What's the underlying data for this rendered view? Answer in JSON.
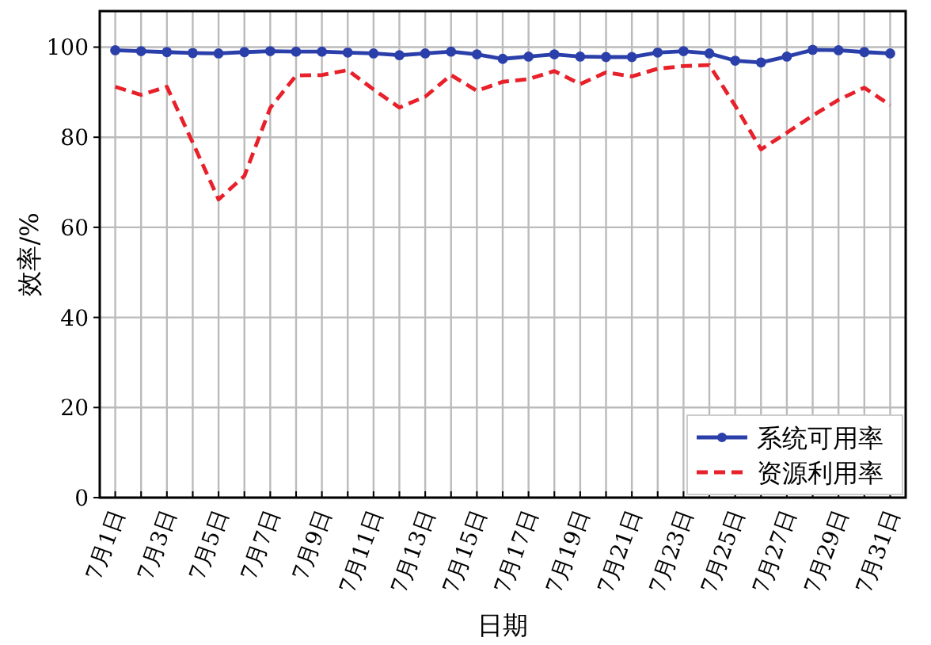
{
  "chart_data": {
    "type": "line",
    "xlabel": "日期",
    "ylabel": "效率/%",
    "categories": [
      "7月1日",
      null,
      "7月3日",
      null,
      "7月5日",
      null,
      "7月7日",
      null,
      "7月9日",
      null,
      "7月11日",
      null,
      "7月13日",
      null,
      "7月15日",
      null,
      "7月17日",
      null,
      "7月19日",
      null,
      "7月21日",
      null,
      "7月23日",
      null,
      "7月25日",
      null,
      "7月27日",
      null,
      "7月29日",
      null,
      "7月31日"
    ],
    "series": [
      {
        "name": "系统可用率",
        "color": "#2b3faa",
        "marker": "circle",
        "line_style": "solid",
        "values": [
          99.3,
          99.1,
          98.9,
          98.7,
          98.6,
          98.9,
          99.1,
          99.0,
          99.0,
          98.8,
          98.6,
          98.2,
          98.6,
          99.0,
          98.4,
          97.4,
          97.9,
          98.4,
          97.9,
          97.8,
          97.8,
          98.8,
          99.1,
          98.6,
          97.0,
          96.6,
          97.9,
          99.4,
          99.3,
          98.9,
          98.6
        ]
      },
      {
        "name": "资源利用率",
        "color": "#e8202a",
        "marker": "none",
        "line_style": "dashed",
        "values": [
          91.2,
          89.4,
          91.2,
          78.8,
          66.2,
          71.4,
          86.5,
          93.7,
          93.8,
          94.9,
          90.6,
          86.6,
          89.0,
          93.8,
          90.3,
          92.3,
          92.9,
          94.7,
          91.8,
          94.4,
          93.5,
          95.2,
          95.8,
          96.0,
          87.0,
          77.3,
          81.0,
          84.8,
          88.3,
          91.0,
          87.1
        ]
      }
    ],
    "ylim": [
      0,
      108
    ],
    "yticks": [
      0,
      20,
      40,
      60,
      80,
      100
    ],
    "grid": true,
    "legend": "bottom right"
  }
}
